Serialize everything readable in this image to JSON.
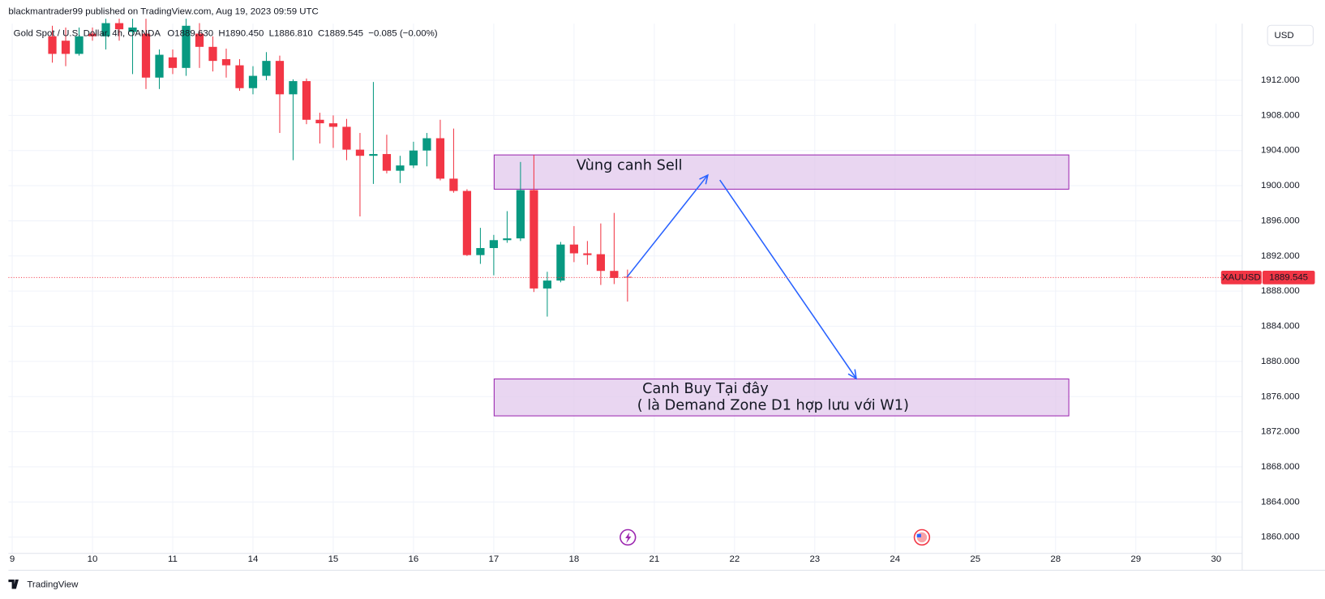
{
  "header": {
    "published": "blackmantrader99 published on TradingView.com, Aug 19, 2023 09:59 UTC",
    "footer": "TradingView",
    "currency": "USD"
  },
  "chart_data": {
    "type": "candlestick",
    "symbol": "Gold Spot / U.S. Dollar, 4h, OANDA",
    "ohlc_text": {
      "open": "O1889.630",
      "high": "H1890.450",
      "low": "L1886.810",
      "close": "C1889.545",
      "change": "−0.085 (−0.00%)"
    },
    "open": [
      1917,
      1916.5,
      1915,
      1917.3,
      1917,
      1918.5,
      1917.5,
      1917.3,
      1912.3,
      1914.6,
      1913.4,
      1917.3,
      1915.8,
      1914.4,
      1913.7,
      1911.1,
      1912.5,
      1914.2,
      1910.4,
      1911.9,
      1907.5,
      1907.1,
      1906.7,
      1904.1,
      1903.4,
      1903.6,
      1901.7,
      1902.3,
      1904,
      1905.4,
      1900.8,
      1899.4,
      1892.1,
      1892.9,
      1893.8,
      1894,
      1899.5,
      1888.3,
      1889.2,
      1893.3,
      1892.3,
      1892.2,
      1890.3,
      1889.63
    ],
    "high": [
      1918.2,
      1918,
      1918,
      1918,
      1919,
      1919,
      1919,
      1919,
      1915.5,
      1915.5,
      1919,
      1918.5,
      1917,
      1915.6,
      1914.4,
      1913.6,
      1915.2,
      1914.8,
      1912.1,
      1912.2,
      1908.3,
      1908,
      1907.6,
      1906,
      1911.8,
      1905.8,
      1903.4,
      1905,
      1906,
      1907.5,
      1906.5,
      1899.6,
      1895.2,
      1894.4,
      1897.1,
      1902.7,
      1903.5,
      1890.2,
      1893.6,
      1895.4,
      1893.7,
      1895.7,
      1896.9,
      1890.45
    ],
    "low": [
      1914,
      1913.6,
      1914.8,
      1916.5,
      1915.5,
      1916.5,
      1912.7,
      1911,
      1911,
      1912.7,
      1912.5,
      1913.4,
      1913,
      1912.3,
      1910.8,
      1910.4,
      1912,
      1906,
      1902.9,
      1907,
      1904.8,
      1904.3,
      1902.9,
      1896.5,
      1900.2,
      1901.4,
      1900.3,
      1902,
      1902.2,
      1900.6,
      1899.2,
      1892,
      1891.1,
      1889.8,
      1893.5,
      1893.7,
      1887.9,
      1885.1,
      1889,
      1891.3,
      1891,
      1888.7,
      1888.8,
      1886.81
    ],
    "close": [
      1915,
      1915,
      1917,
      1917,
      1918.5,
      1917.8,
      1918,
      1912.3,
      1914.9,
      1913.4,
      1918.2,
      1915.8,
      1914.2,
      1913.7,
      1911.1,
      1912.5,
      1914.2,
      1910.4,
      1911.9,
      1907.5,
      1907.1,
      1906.7,
      1904.1,
      1903.4,
      1903.6,
      1901.7,
      1902.3,
      1904,
      1905.4,
      1900.8,
      1899.4,
      1892.1,
      1892.9,
      1893.8,
      1894,
      1899.5,
      1888.3,
      1889.2,
      1893.3,
      1892.3,
      1892.1,
      1890.3,
      1889.5,
      1889.545
    ],
    "up_color": "#089981",
    "down_color": "#f23645",
    "ylim": [
      1858.15,
      1918.44
    ],
    "yticks": [
      {
        "value": 1860,
        "label": "1860.000"
      },
      {
        "value": 1864,
        "label": "1864.000"
      },
      {
        "value": 1868,
        "label": "1868.000"
      },
      {
        "value": 1872,
        "label": "1872.000"
      },
      {
        "value": 1876,
        "label": "1876.000"
      },
      {
        "value": 1880,
        "label": "1880.000"
      },
      {
        "value": 1884,
        "label": "1884.000"
      },
      {
        "value": 1888,
        "label": "1888.000"
      },
      {
        "value": 1892,
        "label": "1892.000"
      },
      {
        "value": 1896,
        "label": "1896.000"
      },
      {
        "value": 1900,
        "label": "1900.000"
      },
      {
        "value": 1904,
        "label": "1904.000"
      },
      {
        "value": 1908,
        "label": "1908.000"
      },
      {
        "value": 1912,
        "label": "1912.000"
      }
    ],
    "xlim": [
      -3.28,
      88.95
    ],
    "xticks": [
      {
        "value": -3,
        "label": "9"
      },
      {
        "value": 3,
        "label": "10"
      },
      {
        "value": 9,
        "label": "11"
      },
      {
        "value": 15,
        "label": "14"
      },
      {
        "value": 21,
        "label": "15"
      },
      {
        "value": 27,
        "label": "16"
      },
      {
        "value": 33,
        "label": "17"
      },
      {
        "value": 39,
        "label": "18"
      },
      {
        "value": 45,
        "label": "21"
      },
      {
        "value": 51,
        "label": "22"
      },
      {
        "value": 57,
        "label": "23"
      },
      {
        "value": 63,
        "label": "24"
      },
      {
        "value": 69,
        "label": "25"
      },
      {
        "value": 75,
        "label": "28"
      },
      {
        "value": 81,
        "label": "29"
      },
      {
        "value": 87,
        "label": "30"
      }
    ],
    "grid": true,
    "last_price": {
      "name": "XAUUSD",
      "value": 1889.545,
      "color": "#f23645"
    },
    "zones": [
      {
        "lines": [
          "Vùng canh Sell"
        ],
        "x": [
          33.03,
          75.99
        ],
        "y": [
          1899.6,
          1903.5
        ]
      },
      {
        "lines": [
          "Canh Buy Tại đây",
          "( là Demand Zone D1 hợp lưu với W1)"
        ],
        "x": [
          33.03,
          75.99
        ],
        "y": [
          1873.8,
          1878
        ]
      }
    ],
    "zone_color": "#e1c8ec",
    "arrows": [
      {
        "x": [
          42.96,
          49
        ],
        "y": [
          1889.6,
          1901.2
        ]
      },
      {
        "x": [
          49.9,
          60.1
        ],
        "y": [
          1900.65,
          1878.05
        ]
      }
    ],
    "arrow_color": "#2962ff"
  }
}
